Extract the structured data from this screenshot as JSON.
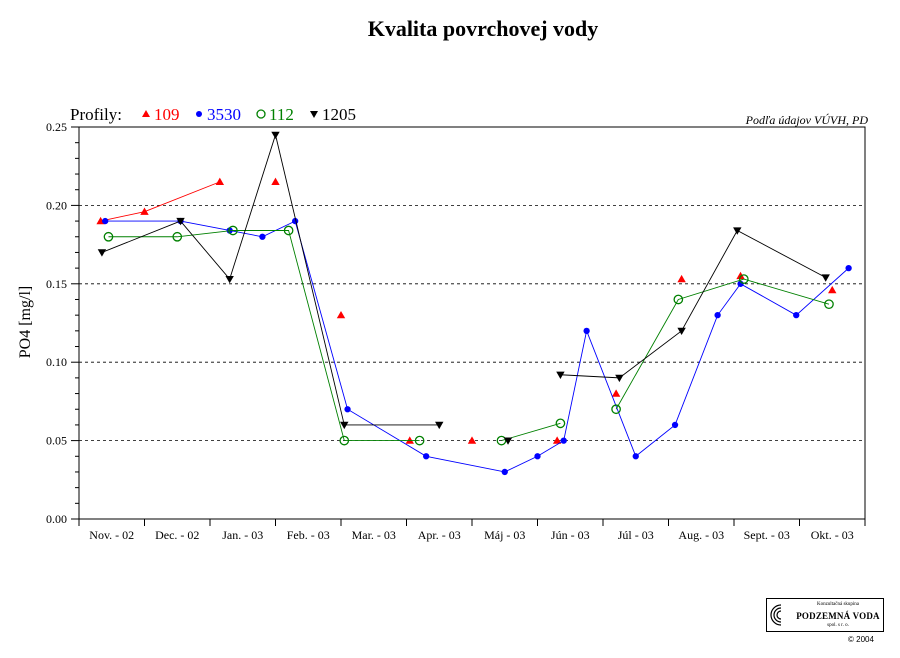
{
  "chart_data": {
    "type": "line",
    "title": "Kvalita povrchovej vody",
    "ylabel": "PO4 [mg/l]",
    "xlabel": "",
    "source_note": "Podľa údajov VÚVH, PD",
    "legend_title": "Profily:",
    "legend_placement": "top-left",
    "ylim": [
      0,
      0.25
    ],
    "yticks": [
      "0.00",
      "0.05",
      "0.10",
      "0.15",
      "0.20",
      "0.25"
    ],
    "ytick_values": [
      0,
      0.05,
      0.1,
      0.15,
      0.2,
      0.25
    ],
    "grid": "horizontal-dashed",
    "categories": [
      "Nov. - 02",
      "Dec. - 02",
      "Jan. - 03",
      "Feb. - 03",
      "Mar. - 03",
      "Apr. - 03",
      "Máj - 03",
      "Jún - 03",
      "Júl - 03",
      "Aug. - 03",
      "Sept. - 03",
      "Okt. - 03"
    ],
    "series": [
      {
        "name": "109",
        "color": "#ff0000",
        "marker": "triangle-up",
        "points": [
          [
            0.33,
            0.19
          ],
          [
            1.0,
            0.196
          ],
          [
            2.15,
            0.215
          ],
          [
            3.0,
            0.215
          ],
          [
            4.0,
            0.13
          ],
          [
            5.05,
            0.05
          ],
          [
            6.0,
            0.05
          ],
          [
            7.3,
            0.05
          ],
          [
            8.2,
            0.08
          ],
          [
            9.2,
            0.153
          ],
          [
            10.1,
            0.155
          ],
          [
            11.5,
            0.146
          ]
        ],
        "segments": [
          [
            0,
            1
          ],
          [
            1,
            2
          ],
          [
            1,
            0
          ]
        ]
      },
      {
        "name": "3530",
        "color": "#0000ff",
        "marker": "circle-filled",
        "points": [
          [
            0.4,
            0.19
          ],
          [
            1.55,
            0.19
          ],
          [
            2.3,
            0.184
          ],
          [
            2.8,
            0.18
          ],
          [
            3.3,
            0.19
          ],
          [
            4.1,
            0.07
          ],
          [
            5.3,
            0.04
          ],
          [
            6.5,
            0.03
          ],
          [
            7.0,
            0.04
          ],
          [
            7.4,
            0.05
          ],
          [
            7.75,
            0.12
          ],
          [
            8.5,
            0.04
          ],
          [
            9.1,
            0.06
          ],
          [
            9.75,
            0.13
          ],
          [
            10.1,
            0.15
          ],
          [
            10.95,
            0.13
          ],
          [
            11.75,
            0.16
          ]
        ],
        "segments": [
          [
            0,
            16
          ]
        ]
      },
      {
        "name": "112",
        "color": "#008000",
        "marker": "circle-open",
        "points": [
          [
            0.45,
            0.18
          ],
          [
            1.5,
            0.18
          ],
          [
            2.35,
            0.184
          ],
          [
            3.2,
            0.184
          ],
          [
            4.05,
            0.05
          ],
          [
            5.2,
            0.05
          ],
          [
            6.45,
            0.05
          ],
          [
            7.35,
            0.061
          ],
          [
            8.2,
            0.07
          ],
          [
            9.15,
            0.14
          ],
          [
            10.15,
            0.153
          ],
          [
            11.45,
            0.137
          ]
        ],
        "segments": [
          [
            0,
            5
          ],
          [
            6,
            7
          ],
          [
            8,
            11
          ]
        ]
      },
      {
        "name": "1205",
        "color": "#000000",
        "marker": "triangle-down",
        "points": [
          [
            0.35,
            0.17
          ],
          [
            1.55,
            0.19
          ],
          [
            2.3,
            0.153
          ],
          [
            3.0,
            0.245
          ],
          [
            4.05,
            0.06
          ],
          [
            5.5,
            0.06
          ],
          [
            6.55,
            0.05
          ],
          [
            7.35,
            0.092
          ],
          [
            8.25,
            0.09
          ],
          [
            9.2,
            0.12
          ],
          [
            10.05,
            0.184
          ],
          [
            11.4,
            0.154
          ]
        ],
        "segments": [
          [
            0,
            4
          ],
          [
            4,
            5
          ],
          [
            6,
            6
          ],
          [
            7,
            8
          ],
          [
            8,
            11
          ]
        ]
      }
    ]
  },
  "logo": {
    "line1": "Konzultačná skupina",
    "name": "PODZEMNÁ VODA",
    "line3": "spol. s r. o."
  },
  "copyright": "© 2004"
}
